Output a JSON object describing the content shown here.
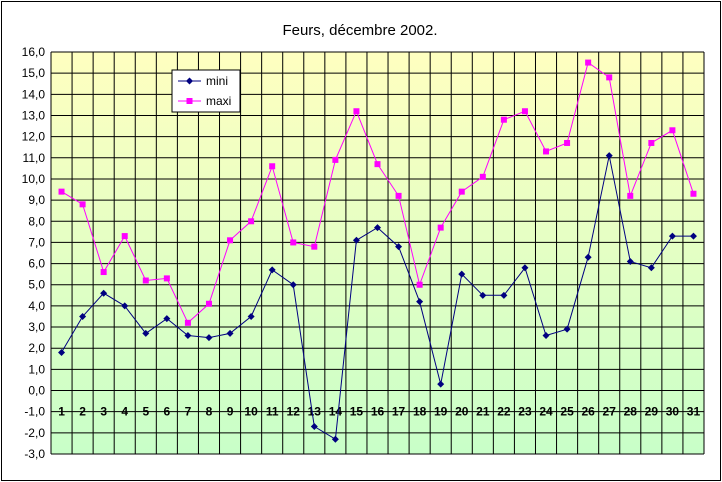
{
  "chart_data": {
    "type": "line",
    "title": "Feurs, décembre 2002.",
    "xlabel": "",
    "ylabel": "",
    "categories": [
      "1",
      "2",
      "3",
      "4",
      "5",
      "6",
      "7",
      "8",
      "9",
      "10",
      "11",
      "12",
      "13",
      "14",
      "15",
      "16",
      "17",
      "18",
      "19",
      "20",
      "21",
      "22",
      "23",
      "24",
      "25",
      "26",
      "27",
      "28",
      "29",
      "30",
      "31"
    ],
    "ylim": [
      -3,
      16
    ],
    "ytick_labels": [
      "16,0",
      "15,0",
      "14,0",
      "13,0",
      "12,0",
      "11,0",
      "10,0",
      "9,0",
      "8,0",
      "7,0",
      "6,0",
      "5,0",
      "4,0",
      "3,0",
      "2,0",
      "1,0",
      "0,0",
      "-1,0",
      "-2,0",
      "-3,0"
    ],
    "grid": true,
    "legend_position": "top-left",
    "background_gradient": [
      "#ffffc0",
      "#c8ffc8"
    ],
    "series": [
      {
        "name": "mini",
        "color": "#000080",
        "marker": "diamond",
        "values": [
          1.8,
          3.5,
          4.6,
          4.0,
          2.7,
          3.4,
          2.6,
          2.5,
          2.7,
          3.5,
          5.7,
          5.0,
          -1.7,
          -2.3,
          7.1,
          7.7,
          6.8,
          4.2,
          0.3,
          5.5,
          4.5,
          4.5,
          5.8,
          2.6,
          2.9,
          6.3,
          11.1,
          6.1,
          5.8,
          7.3,
          7.3
        ]
      },
      {
        "name": "maxi",
        "color": "#ff00ff",
        "marker": "square",
        "values": [
          9.4,
          8.8,
          5.6,
          7.3,
          5.2,
          5.3,
          3.2,
          4.1,
          7.1,
          8.0,
          10.6,
          7.0,
          6.8,
          10.9,
          13.2,
          10.7,
          9.2,
          5.0,
          7.7,
          9.4,
          10.1,
          12.8,
          13.2,
          11.3,
          11.7,
          15.5,
          14.8,
          9.2,
          11.7,
          12.3,
          9.3
        ]
      }
    ]
  }
}
